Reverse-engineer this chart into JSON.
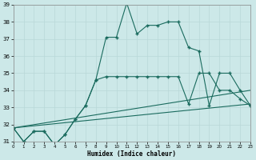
{
  "xlabel": "Humidex (Indice chaleur)",
  "bg_color": "#cce8e8",
  "grid_color": "#b8d8d8",
  "line_color": "#1a6b5e",
  "xlim": [
    0,
    23
  ],
  "ylim": [
    31,
    39
  ],
  "yticks": [
    31,
    32,
    33,
    34,
    35,
    36,
    37,
    38,
    39
  ],
  "xticks": [
    0,
    1,
    2,
    3,
    4,
    5,
    6,
    7,
    8,
    9,
    10,
    11,
    12,
    13,
    14,
    15,
    16,
    17,
    18,
    19,
    20,
    21,
    22,
    23
  ],
  "line1_x": [
    0,
    1,
    2,
    3,
    4,
    5,
    6,
    7,
    8,
    9,
    10,
    11,
    12,
    13,
    14,
    15,
    16,
    17,
    18,
    19,
    20,
    21,
    22,
    23
  ],
  "line1_y": [
    31.8,
    31.0,
    31.6,
    31.6,
    30.8,
    31.4,
    32.3,
    33.1,
    34.6,
    37.1,
    37.1,
    39.1,
    37.3,
    37.8,
    37.8,
    38.0,
    38.0,
    36.5,
    36.3,
    33.1,
    35.0,
    35.0,
    34.0,
    33.1
  ],
  "line2_x": [
    0,
    1,
    2,
    3,
    4,
    5,
    6,
    7,
    8,
    9,
    10,
    11,
    12,
    13,
    14,
    15,
    16,
    17,
    18,
    19,
    20,
    21,
    22,
    23
  ],
  "line2_y": [
    31.8,
    31.0,
    31.6,
    31.6,
    30.8,
    31.4,
    32.3,
    33.1,
    34.6,
    34.8,
    34.8,
    34.8,
    34.8,
    34.8,
    34.8,
    34.8,
    34.8,
    33.2,
    35.0,
    35.0,
    34.0,
    34.0,
    33.5,
    33.1
  ],
  "line3_x": [
    0,
    23
  ],
  "line3_y": [
    31.8,
    34.0
  ],
  "line4_x": [
    0,
    23
  ],
  "line4_y": [
    31.8,
    33.2
  ]
}
